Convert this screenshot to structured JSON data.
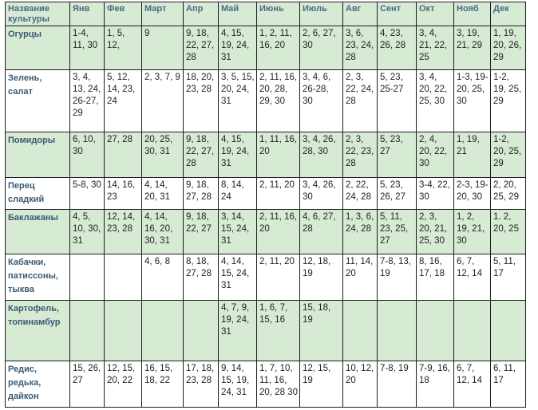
{
  "header": {
    "crop": "Название культуры",
    "months": [
      "Янв",
      "Фев",
      "Март",
      "Апр",
      "Май",
      "Июнь",
      "Июль",
      "Авг",
      "Сент",
      "Окт",
      "Нояб",
      "Дек"
    ]
  },
  "rows": [
    {
      "crop": "Огурцы",
      "cells": [
        "1-4, 11, 30",
        "1, 5, 12,",
        "9",
        "9, 18, 22, 27, 28",
        "4, 15, 19, 24, 31",
        "1, 2, 11, 16, 20",
        "2, 6, 27, 30",
        "3, 6, 23, 24, 28",
        "4, 23, 26, 28",
        "3, 4, 21, 22, 25",
        "3, 19, 21, 29",
        "1, 19, 20, 26, 29"
      ]
    },
    {
      "crop": "Зелень, салат",
      "cells": [
        "3, 4, 13, 24, 26-27, 29",
        "5, 12, 14, 23, 24",
        "2, 3, 7, 9",
        "18, 20, 23, 28",
        "3, 5, 15, 20, 24, 31",
        "2, 11, 16, 20, 28, 29, 30",
        "3, 4, 6, 26-28, 30",
        "2, 3, 22, 24, 28",
        "5, 23, 25-27",
        "3, 4, 20, 22, 25, 30",
        "1-3, 19-20, 25, 30",
        "1-2, 19, 25, 29"
      ]
    },
    {
      "crop": "Помидоры",
      "cells": [
        "6, 10, 30",
        "27, 28",
        "20, 25, 30, 31",
        "9, 18, 22, 27, 28",
        "4, 15, 19, 24, 31",
        "1, 11, 16, 20",
        "3, 4, 26, 28, 30",
        "2, 3, 22, 23, 28",
        "5, 23, 27",
        "2, 4, 20, 22, 30",
        "1, 19, 21",
        "1-2, 20, 25, 29"
      ]
    },
    {
      "crop": "Перец сладкий",
      "cells": [
        "5-8, 30",
        "14, 16, 23",
        "4, 14, 20, 31",
        "9, 18, 27, 28",
        "8, 14, 24",
        "2, 11, 20",
        "3, 4, 26, 30",
        "2, 22, 24, 28",
        "5, 23, 26, 27",
        "3-4, 22, 30",
        "2-3, 19-20, 30",
        "2, 20, 25, 29"
      ]
    },
    {
      "crop": "Баклажаны",
      "cells": [
        "4, 5, 10, 30, 31",
        "12, 14, 23, 28",
        "4, 14, 16, 20, 30, 31",
        "9, 18, 22, 27",
        "3, 14, 15, 24, 31",
        "2, 11, 16, 20",
        "4, 6, 27, 28",
        "1, 3, 6, 24, 28",
        "5, 11, 23, 25, 27",
        "2, 3, 20, 21, 25, 30",
        "1, 2, 19, 21, 30",
        "1. 2, 20, 25"
      ]
    },
    {
      "crop": "Кабачки, патиссоны, тыква",
      "cells": [
        "",
        "",
        "4, 6, 8",
        "8, 18, 27, 28",
        "4, 14, 15, 24, 31",
        "2, 11, 20",
        "12, 18, 19",
        "11, 14, 20",
        "7-8, 13, 19",
        "8, 16, 17, 18",
        "6, 7, 12, 14",
        "5, 11, 17"
      ]
    },
    {
      "crop": "Картофель, топинамбур",
      "cells": [
        "",
        "",
        "",
        "",
        "4, 7, 9, 19, 24, 31",
        "1, 6, 7, 15, 16",
        "15, 18, 19",
        "",
        "",
        "",
        "",
        ""
      ]
    },
    {
      "crop": "Редис, редька, дайкон",
      "cells": [
        "15, 26, 27",
        "12, 15, 20, 22",
        "16, 15, 18, 22",
        "17, 18, 23, 28",
        "9, 14, 15, 19, 24, 31",
        "1, 7, 10, 11, 16, 20, 28 30",
        "12, 15, 19",
        "10, 12, 20",
        "7-8, 19",
        "7-9, 16, 18",
        "6, 7, 12, 14",
        "6, 11, 17"
      ]
    }
  ]
}
